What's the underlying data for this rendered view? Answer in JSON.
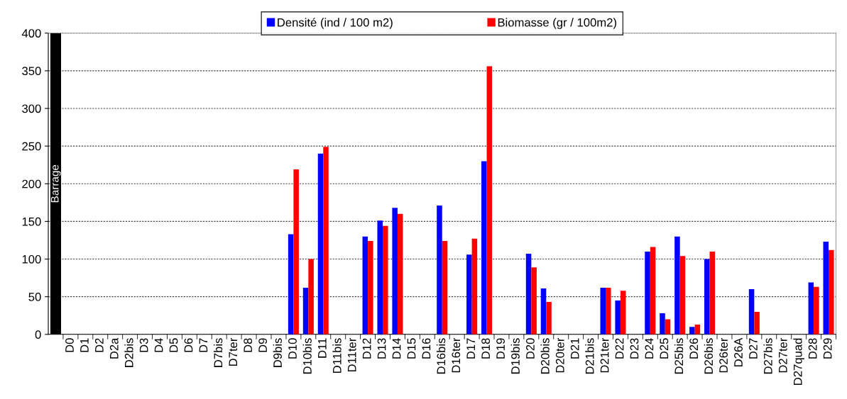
{
  "chart_data": {
    "type": "bar",
    "categories": [
      null,
      "D0",
      "D1",
      "D2",
      "D2a",
      "D2bis",
      "D3",
      "D4",
      "D5",
      "D6",
      "D7",
      "D7bis",
      "D7ter",
      "D8",
      "D9",
      "D9bis",
      "D10",
      "D10bis",
      "D11",
      "D11bis",
      "D11ter",
      "D12",
      "D13",
      "D14",
      "D15",
      "D16",
      "D16bis",
      "D16ter",
      "D17",
      "D18",
      "D19",
      "D19bis",
      "D20",
      "D20bis",
      "D20ter",
      "D21",
      "D21bis",
      "D21ter",
      "D22",
      "D23",
      "D24",
      "D25",
      "D25bis",
      "D26",
      "D26bis",
      "D26ter",
      "D26A",
      "D27",
      "D27bis",
      "D27ter",
      "D27quad",
      "D28",
      "D29"
    ],
    "series": [
      {
        "name": "Densité (ind / 100 m2)",
        "color": "#0000ff",
        "values": [
          null,
          0,
          0,
          0,
          0,
          0,
          0,
          0,
          0,
          0,
          0,
          0,
          0,
          0,
          0,
          0,
          133,
          62,
          240,
          0,
          0,
          130,
          151,
          168,
          0,
          0,
          171,
          0,
          106,
          230,
          0,
          0,
          107,
          61,
          0,
          0,
          0,
          62,
          45,
          0,
          110,
          28,
          130,
          10,
          100,
          0,
          0,
          60,
          0,
          0,
          0,
          69,
          123
        ]
      },
      {
        "name": "Biomasse (gr / 100m2)",
        "color": "#ff0000",
        "values": [
          null,
          0,
          0,
          0,
          0,
          0,
          0,
          0,
          0,
          0,
          0,
          0,
          0,
          0,
          0,
          0,
          219,
          100,
          249,
          0,
          0,
          124,
          144,
          160,
          0,
          0,
          124,
          0,
          127,
          356,
          0,
          0,
          89,
          43,
          0,
          0,
          0,
          62,
          58,
          0,
          116,
          20,
          104,
          13,
          110,
          0,
          0,
          30,
          0,
          0,
          0,
          63,
          112
        ]
      },
      {
        "name": "Barrage",
        "color": "#000000",
        "values": [
          400,
          null,
          null,
          null,
          null,
          null,
          null,
          null,
          null,
          null,
          null,
          null,
          null,
          null,
          null,
          null,
          null,
          null,
          null,
          null,
          null,
          null,
          null,
          null,
          null,
          null,
          null,
          null,
          null,
          null,
          null,
          null,
          null,
          null,
          null,
          null,
          null,
          null,
          null,
          null,
          null,
          null,
          null,
          null,
          null,
          null,
          null,
          null,
          null,
          null,
          null,
          null,
          null
        ]
      }
    ],
    "ylim": [
      0,
      400
    ],
    "yticks": [
      0,
      50,
      100,
      150,
      200,
      250,
      300,
      350,
      400
    ],
    "grid": "y",
    "legend": "top"
  }
}
